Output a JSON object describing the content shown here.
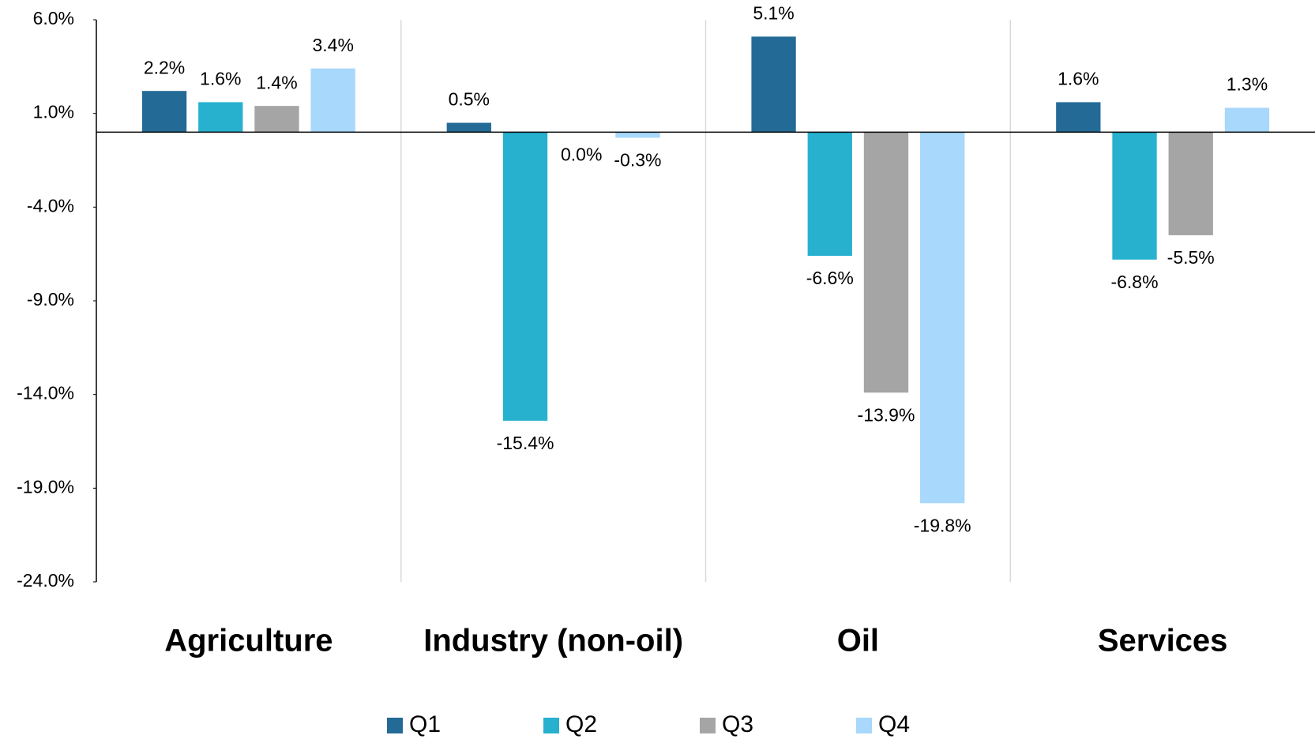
{
  "chart_data": {
    "type": "bar",
    "categories": [
      "Agriculture",
      "Industry (non-oil)",
      "Oil",
      "Services"
    ],
    "series": [
      {
        "name": "Q1",
        "color": "#246a96",
        "values": [
          2.2,
          0.5,
          5.1,
          1.6
        ],
        "value_labels": [
          "2.2%",
          "0.5%",
          "5.1%",
          "1.6%"
        ]
      },
      {
        "name": "Q2",
        "color": "#27b1cf",
        "values": [
          1.6,
          -15.4,
          -6.6,
          -6.8
        ],
        "value_labels": [
          "1.6%",
          "-15.4%",
          "-6.6%",
          "-6.8%"
        ]
      },
      {
        "name": "Q3",
        "color": "#a5a5a5",
        "values": [
          1.4,
          0.0,
          -13.9,
          -5.5
        ],
        "value_labels": [
          "1.4%",
          "0.0%",
          "-13.9%",
          "-5.5%"
        ]
      },
      {
        "name": "Q4",
        "color": "#a8d8fb",
        "values": [
          3.4,
          -0.3,
          -19.8,
          1.3
        ],
        "value_labels": [
          "3.4%",
          "-0.3%",
          "-19.8%",
          "1.3%"
        ]
      }
    ],
    "ylim": [
      -24,
      6
    ],
    "yticks": [
      {
        "value": 6,
        "label": "6.0%"
      },
      {
        "value": 1,
        "label": "1.0%"
      },
      {
        "value": -4,
        "label": "-4.0%"
      },
      {
        "value": -9,
        "label": "-9.0%"
      },
      {
        "value": -14,
        "label": "-14.0%"
      },
      {
        "value": -19,
        "label": "-19.0%"
      },
      {
        "value": -24,
        "label": "-24.0%"
      }
    ],
    "grid": false,
    "legend": "bottom"
  }
}
